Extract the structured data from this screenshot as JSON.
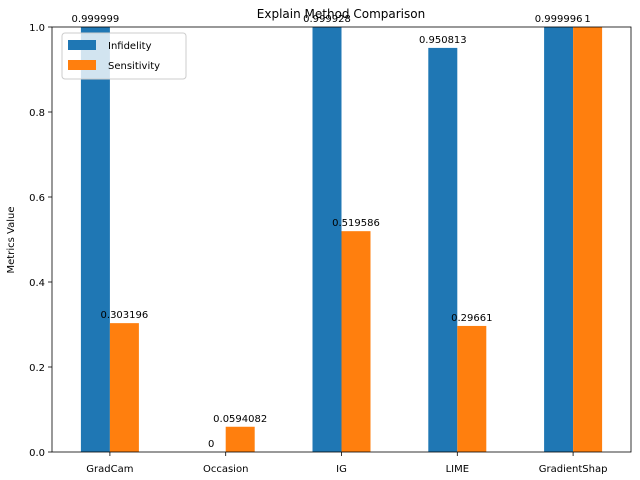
{
  "chart_data": {
    "type": "bar",
    "title": "Explain Method Comparison",
    "xlabel": "",
    "ylabel": "Metrics Value",
    "ylim": [
      0,
      1.0
    ],
    "yticks": [
      "0.0",
      "0.2",
      "0.4",
      "0.6",
      "0.8",
      "1.0"
    ],
    "categories": [
      "GradCam",
      "Occasion",
      "IG",
      "LIME",
      "GradientShap"
    ],
    "series": [
      {
        "name": "Infidelity",
        "color": "#1f77b4",
        "values": [
          0.999999,
          0,
          0.999928,
          0.950813,
          0.999996
        ],
        "labels": [
          "0.999999",
          "0",
          "0.999928",
          "0.950813",
          "0.999996"
        ]
      },
      {
        "name": "Sensitivity",
        "color": "#ff7f0e",
        "values": [
          0.303196,
          0.0594082,
          0.519586,
          0.29661,
          1
        ],
        "labels": [
          "0.303196",
          "0.0594082",
          "0.519586",
          "0.29661",
          "1"
        ]
      }
    ],
    "legend_position": "top-left",
    "grid": false
  }
}
